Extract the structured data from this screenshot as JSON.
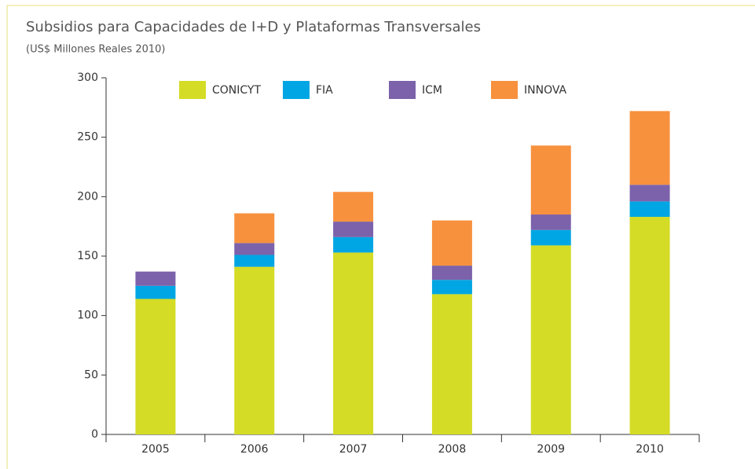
{
  "chart_data": {
    "type": "stacked_bar",
    "title": "Subsidios para Capacidades de I+D y Plataformas Transversales",
    "subtitle": "(US$ Millones Reales 2010)",
    "categories": [
      "2005",
      "2006",
      "2007",
      "2008",
      "2009",
      "2010"
    ],
    "series": [
      {
        "name": "CONICYT",
        "color": "#d4dc26",
        "values": [
          114,
          141,
          153,
          118,
          159,
          183
        ]
      },
      {
        "name": "FIA",
        "color": "#00a6e3",
        "values": [
          11,
          10,
          13,
          12,
          13,
          13
        ]
      },
      {
        "name": "ICM",
        "color": "#7c62aa",
        "values": [
          12,
          10,
          13,
          12,
          13,
          14
        ]
      },
      {
        "name": "INNOVA",
        "color": "#f7913e",
        "values": [
          0,
          25,
          25,
          38,
          58,
          62
        ]
      }
    ],
    "ylim": [
      0,
      300
    ],
    "yticks": [
      0,
      50,
      100,
      150,
      200,
      250,
      300
    ],
    "legend": "top"
  }
}
